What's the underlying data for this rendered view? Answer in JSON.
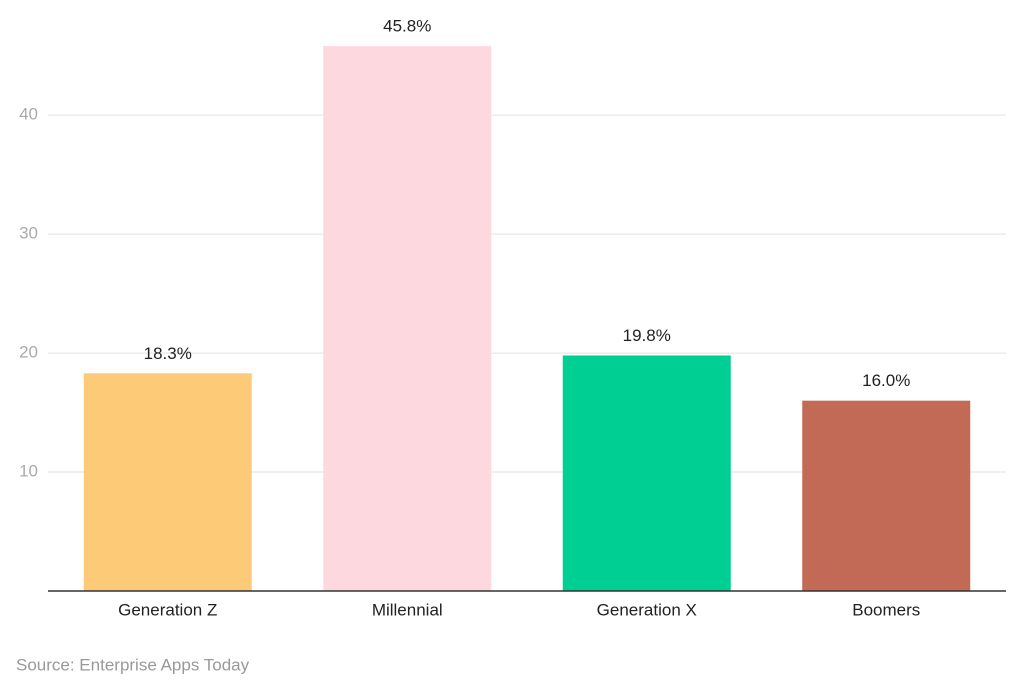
{
  "chart_data": {
    "type": "bar",
    "categories": [
      "Generation Z",
      "Millennial",
      "Generation X",
      "Boomers"
    ],
    "values": [
      18.3,
      45.8,
      19.8,
      16.0
    ],
    "value_labels": [
      "18.3%",
      "45.8%",
      "19.8%",
      "16.0%"
    ],
    "colors": [
      "#fdca78",
      "#fdd8df",
      "#00cf93",
      "#c26a55"
    ],
    "ylim": [
      0,
      48
    ],
    "yticks": [
      10,
      20,
      30,
      40
    ],
    "grid": true,
    "source": "Source: Enterprise Apps Today"
  }
}
